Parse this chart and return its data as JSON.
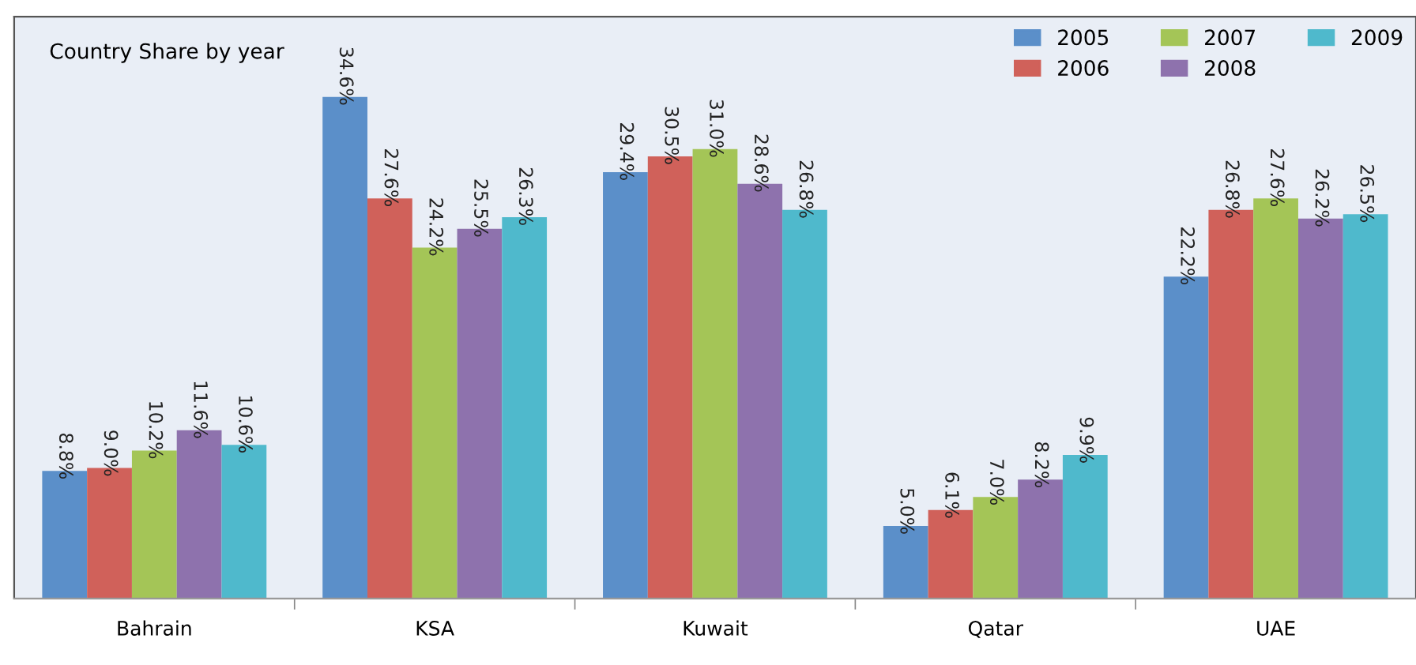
{
  "chart_data": {
    "type": "bar",
    "title": "Country Share by year",
    "categories": [
      "Bahrain",
      "KSA",
      "Kuwait",
      "Qatar",
      "UAE"
    ],
    "series": [
      {
        "name": "2005",
        "color": "#5b8fc9",
        "values": [
          8.8,
          34.6,
          29.4,
          5.0,
          22.2
        ],
        "value_labels": [
          "8.8%",
          "34.6%",
          "29.4%",
          "5.0%",
          "22.2%"
        ]
      },
      {
        "name": "2006",
        "color": "#d0615a",
        "values": [
          9.0,
          27.6,
          30.5,
          6.1,
          26.8
        ],
        "value_labels": [
          "9.0%",
          "27.6%",
          "30.5%",
          "6.1%",
          "26.8%"
        ]
      },
      {
        "name": "2007",
        "color": "#a4c557",
        "values": [
          10.2,
          24.2,
          31.0,
          7.0,
          27.6
        ],
        "value_labels": [
          "10.2%",
          "24.2%",
          "31.0%",
          "7.0%",
          "27.6%"
        ]
      },
      {
        "name": "2008",
        "color": "#8e72ad",
        "values": [
          11.6,
          25.5,
          28.6,
          8.2,
          26.2
        ],
        "value_labels": [
          "11.6%",
          "25.5%",
          "28.6%",
          "8.2%",
          "26.2%"
        ]
      },
      {
        "name": "2009",
        "color": "#4fb9cc",
        "values": [
          10.6,
          26.3,
          26.8,
          9.9,
          26.5
        ],
        "value_labels": [
          "10.6%",
          "26.3%",
          "26.8%",
          "9.9%",
          "26.5%"
        ]
      }
    ],
    "legend": "top right",
    "grid": false
  }
}
